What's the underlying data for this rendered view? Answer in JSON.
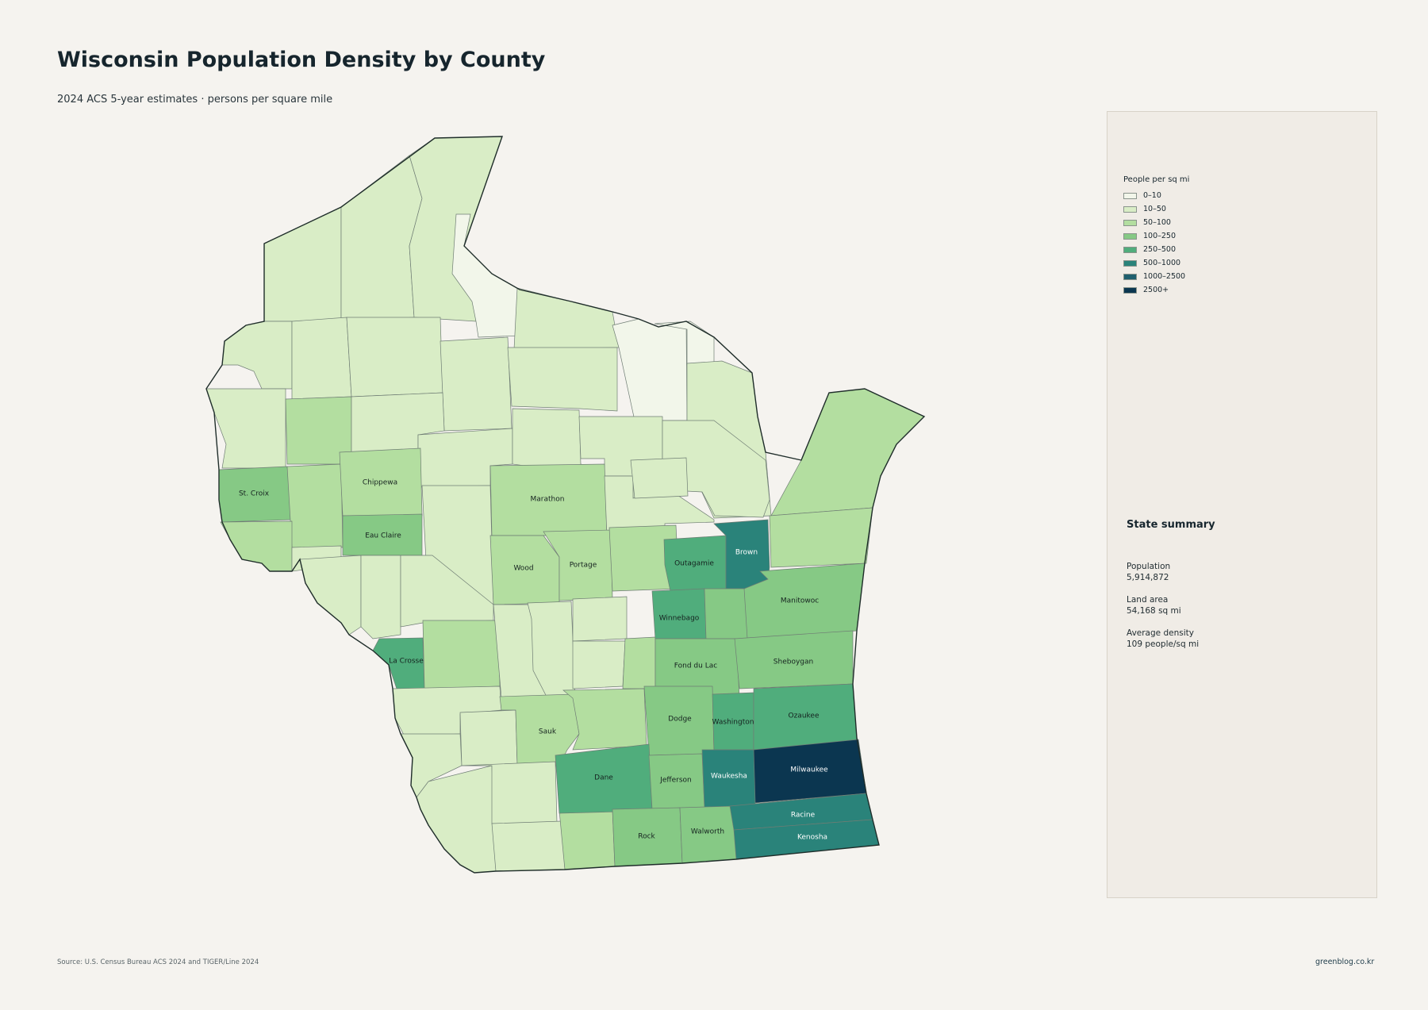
{
  "title": "Wisconsin Population Density by County",
  "subtitle": "2024 ACS 5-year estimates · persons per square mile",
  "legend": {
    "title": "People per sq mi",
    "items": [
      {
        "label": "0–10",
        "color": "#f2f6ea"
      },
      {
        "label": "10–50",
        "color": "#d9edc6"
      },
      {
        "label": "50–100",
        "color": "#b3dea0"
      },
      {
        "label": "100–250",
        "color": "#86c985"
      },
      {
        "label": "250–500",
        "color": "#50ad7c"
      },
      {
        "label": "500–1000",
        "color": "#2a837a"
      },
      {
        "label": "1000–2500",
        "color": "#1f5f6e"
      },
      {
        "label": "2500+",
        "color": "#0b3650"
      }
    ]
  },
  "labeled_counties": [
    {
      "name": "St. Croix",
      "bin": "100–250"
    },
    {
      "name": "Chippewa",
      "bin": "50–100"
    },
    {
      "name": "Eau Claire",
      "bin": "100–250"
    },
    {
      "name": "Marathon",
      "bin": "50–100"
    },
    {
      "name": "Wood",
      "bin": "50–100"
    },
    {
      "name": "Portage",
      "bin": "50–100"
    },
    {
      "name": "Outagamie",
      "bin": "250–500"
    },
    {
      "name": "Brown",
      "bin": "500–1000"
    },
    {
      "name": "Manitowoc",
      "bin": "100–250"
    },
    {
      "name": "Winnebago",
      "bin": "250–500"
    },
    {
      "name": "La Crosse",
      "bin": "250–500"
    },
    {
      "name": "Fond du Lac",
      "bin": "100–250"
    },
    {
      "name": "Sheboygan",
      "bin": "100–250"
    },
    {
      "name": "Sauk",
      "bin": "50–100"
    },
    {
      "name": "Dodge",
      "bin": "100–250"
    },
    {
      "name": "Washington",
      "bin": "250–500"
    },
    {
      "name": "Ozaukee",
      "bin": "250–500"
    },
    {
      "name": "Dane",
      "bin": "250–500"
    },
    {
      "name": "Jefferson",
      "bin": "100–250"
    },
    {
      "name": "Waukesha",
      "bin": "500–1000"
    },
    {
      "name": "Milwaukee",
      "bin": "2500+"
    },
    {
      "name": "Racine",
      "bin": "500–1000"
    },
    {
      "name": "Rock",
      "bin": "100–250"
    },
    {
      "name": "Walworth",
      "bin": "100–250"
    },
    {
      "name": "Kenosha",
      "bin": "500–1000"
    }
  ],
  "summary": {
    "title": "State summary",
    "population_label": "Population",
    "population_value": "5,914,872",
    "land_area_label": "Land area",
    "land_area_value": "54,168 sq mi",
    "density_label": "Average density",
    "density_value": "109 people/sq mi"
  },
  "source": "Source: U.S. Census Bureau ACS 2024 and TIGER/Line 2024",
  "credit": "greenblog.co.kr"
}
